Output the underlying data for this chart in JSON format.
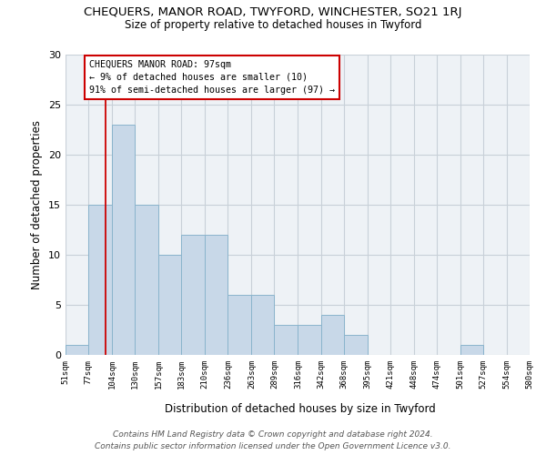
{
  "title1": "CHEQUERS, MANOR ROAD, TWYFORD, WINCHESTER, SO21 1RJ",
  "title2": "Size of property relative to detached houses in Twyford",
  "xlabel": "Distribution of detached houses by size in Twyford",
  "ylabel": "Number of detached properties",
  "bar_color": "#c8d8e8",
  "bar_edge_color": "#8ab4cc",
  "grid_color": "#c8d0d8",
  "bg_color": "#eef2f6",
  "annotation_line_color": "#cc0000",
  "annotation_box_color": "#cc0000",
  "annotation_text": "CHEQUERS MANOR ROAD: 97sqm\n← 9% of detached houses are smaller (10)\n91% of semi-detached houses are larger (97) →",
  "property_line_x": 97,
  "bins": [
    51,
    77,
    104,
    130,
    157,
    183,
    210,
    236,
    263,
    289,
    316,
    342,
    368,
    395,
    421,
    448,
    474,
    501,
    527,
    554,
    580
  ],
  "counts": [
    1,
    15,
    23,
    15,
    10,
    12,
    12,
    6,
    6,
    3,
    3,
    4,
    2,
    0,
    0,
    0,
    0,
    1,
    0,
    0
  ],
  "ylim": [
    0,
    30
  ],
  "yticks": [
    0,
    5,
    10,
    15,
    20,
    25,
    30
  ],
  "footnote1": "Contains HM Land Registry data © Crown copyright and database right 2024.",
  "footnote2": "Contains public sector information licensed under the Open Government Licence v3.0."
}
